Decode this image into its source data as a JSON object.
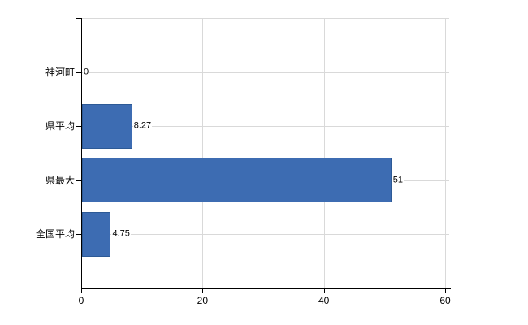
{
  "chart_data": {
    "type": "bar",
    "orientation": "horizontal",
    "title": "",
    "xlabel": "",
    "ylabel": "",
    "categories": [
      "神河町",
      "県平均",
      "県最大",
      "全国平均"
    ],
    "values": [
      0,
      8.27,
      51,
      4.75
    ],
    "value_labels": [
      "0",
      "8.27",
      "51",
      "4.75"
    ],
    "xlim": [
      0,
      60
    ],
    "xticks": [
      0,
      20,
      40,
      60
    ],
    "xtick_labels": [
      "0",
      "20",
      "40",
      "60"
    ],
    "grid": true,
    "legend": null,
    "colors": {
      "bar_fill": "#3d6cb2",
      "bar_border": "#2d5a96",
      "grid": "#d9d9d9",
      "axis": "#000000",
      "text": "#000000",
      "background": "#ffffff"
    }
  }
}
